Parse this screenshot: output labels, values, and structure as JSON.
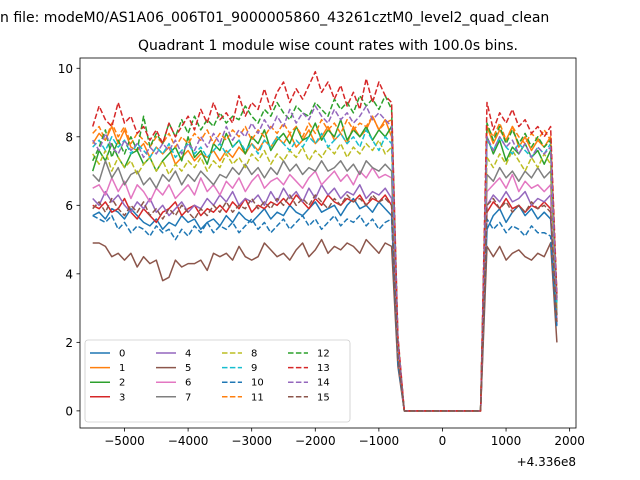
{
  "chart_data": {
    "type": "line",
    "suptitle": "n file: modeM0/AS1A06_006T01_9000005860_43261cztM0_level2_quad_clean",
    "title": "Quadrant 1 module wise count rates with 100.0s bins.",
    "xlabel": "",
    "ylabel": "",
    "offset_label": "+4.336e8",
    "xlim": [
      -5700,
      2100
    ],
    "ylim": [
      -0.5,
      10.3
    ],
    "xticks": [
      -5000,
      -4000,
      -3000,
      -2000,
      -1000,
      0,
      1000,
      2000
    ],
    "xtick_labels": [
      "−5000",
      "−4000",
      "−3000",
      "−2000",
      "−1000",
      "0",
      "1000",
      "2000"
    ],
    "yticks": [
      0,
      2,
      4,
      6,
      8,
      10
    ],
    "ytick_labels": [
      "0",
      "2",
      "4",
      "6",
      "8",
      "10"
    ],
    "grid": false,
    "legend_position": "lower-left",
    "legend_columns": 4,
    "x": [
      -5500,
      -5400,
      -5300,
      -5200,
      -5100,
      -5000,
      -4900,
      -4800,
      -4700,
      -4600,
      -4500,
      -4400,
      -4300,
      -4200,
      -4100,
      -4000,
      -3900,
      -3800,
      -3700,
      -3600,
      -3500,
      -3400,
      -3300,
      -3200,
      -3100,
      -3000,
      -2900,
      -2800,
      -2700,
      -2600,
      -2500,
      -2400,
      -2300,
      -2200,
      -2100,
      -2000,
      -1900,
      -1800,
      -1700,
      -1600,
      -1500,
      -1400,
      -1300,
      -1200,
      -1100,
      -1000,
      -900,
      -800,
      -700,
      -600,
      600,
      700,
      800,
      900,
      1000,
      1100,
      1200,
      1300,
      1400,
      1500,
      1600,
      1700,
      1800
    ],
    "series": [
      {
        "name": "0",
        "color": "#1f77b4",
        "dash": "solid",
        "values": [
          5.7,
          5.8,
          5.6,
          5.9,
          5.8,
          5.6,
          5.9,
          5.7,
          5.5,
          5.4,
          5.6,
          5.3,
          5.5,
          5.4,
          5.7,
          5.5,
          5.6,
          5.3,
          5.5,
          5.6,
          5.4,
          5.7,
          5.5,
          5.8,
          5.6,
          5.5,
          5.7,
          5.9,
          5.6,
          5.8,
          5.7,
          6.0,
          5.8,
          5.7,
          5.9,
          6.1,
          5.8,
          5.9,
          6.0,
          5.7,
          6.0,
          6.2,
          5.9,
          6.0,
          5.8,
          6.1,
          5.9,
          5.7,
          1.5,
          0.0,
          0.0,
          5.3,
          5.7,
          5.9,
          5.5,
          5.8,
          6.0,
          5.7,
          5.9,
          5.6,
          5.8,
          5.6,
          2.7
        ]
      },
      {
        "name": "1",
        "color": "#ff7f0e",
        "dash": "solid",
        "values": [
          7.8,
          8.1,
          7.9,
          8.3,
          7.8,
          8.2,
          7.7,
          7.6,
          7.8,
          7.4,
          7.7,
          7.5,
          7.7,
          7.2,
          7.4,
          7.6,
          7.3,
          7.5,
          7.4,
          7.6,
          7.3,
          7.6,
          7.4,
          7.7,
          7.5,
          7.8,
          7.6,
          7.9,
          7.7,
          8.0,
          7.8,
          8.1,
          7.7,
          7.9,
          8.2,
          7.8,
          8.0,
          8.3,
          7.9,
          8.1,
          7.8,
          8.3,
          8.0,
          8.2,
          8.6,
          8.2,
          8.5,
          8.0,
          1.8,
          0.0,
          0.0,
          8.3,
          7.8,
          8.2,
          7.9,
          8.3,
          7.7,
          8.0,
          7.6,
          7.9,
          7.7,
          8.0,
          3.2
        ]
      },
      {
        "name": "2",
        "color": "#2ca02c",
        "dash": "solid",
        "values": [
          7.0,
          7.6,
          7.3,
          7.8,
          7.4,
          7.1,
          7.5,
          7.6,
          7.2,
          7.4,
          7.0,
          7.3,
          7.5,
          7.7,
          7.3,
          8.0,
          7.4,
          7.6,
          7.2,
          7.8,
          7.6,
          8.1,
          7.7,
          7.9,
          7.5,
          8.0,
          7.8,
          8.2,
          7.6,
          7.9,
          8.1,
          7.8,
          8.3,
          7.9,
          8.0,
          8.4,
          7.9,
          8.2,
          8.0,
          8.5,
          7.9,
          8.2,
          8.0,
          8.3,
          7.9,
          8.2,
          8.0,
          8.3,
          1.8,
          0.0,
          0.0,
          8.0,
          7.5,
          7.9,
          7.3,
          7.7,
          7.5,
          7.8,
          7.4,
          7.6,
          7.2,
          7.6,
          2.8
        ]
      },
      {
        "name": "3",
        "color": "#d62728",
        "dash": "solid",
        "values": [
          6.0,
          5.9,
          6.1,
          5.8,
          5.9,
          6.2,
          5.8,
          5.6,
          5.9,
          5.7,
          5.5,
          5.8,
          5.9,
          6.1,
          5.7,
          5.9,
          6.0,
          5.7,
          5.9,
          5.8,
          6.0,
          5.8,
          6.1,
          5.9,
          6.2,
          5.8,
          6.0,
          5.9,
          6.1,
          6.0,
          6.2,
          6.0,
          6.3,
          6.1,
          5.9,
          6.2,
          6.0,
          6.3,
          6.1,
          6.0,
          6.2,
          6.1,
          6.3,
          6.0,
          6.2,
          6.1,
          6.3,
          6.0,
          1.6,
          0.0,
          0.0,
          5.8,
          6.1,
          5.9,
          6.2,
          5.9,
          6.0,
          5.8,
          6.0,
          5.9,
          6.1,
          5.9,
          2.6
        ]
      },
      {
        "name": "4",
        "color": "#9467bd",
        "dash": "solid",
        "values": [
          6.2,
          6.0,
          6.4,
          6.1,
          6.3,
          6.0,
          5.8,
          6.1,
          5.9,
          6.2,
          5.8,
          6.0,
          5.7,
          5.9,
          6.1,
          5.8,
          6.0,
          5.9,
          6.2,
          6.0,
          6.3,
          6.1,
          6.4,
          6.0,
          6.2,
          6.1,
          6.3,
          6.0,
          6.4,
          6.1,
          6.5,
          6.2,
          6.4,
          6.1,
          6.5,
          6.2,
          6.6,
          6.3,
          6.5,
          6.2,
          6.4,
          6.3,
          6.6,
          6.2,
          6.4,
          6.3,
          6.5,
          6.2,
          1.6,
          0.0,
          0.0,
          6.0,
          6.3,
          6.1,
          6.4,
          6.1,
          6.2,
          6.4,
          6.0,
          6.2,
          6.1,
          6.3,
          2.5
        ]
      },
      {
        "name": "5",
        "color": "#8c564b",
        "dash": "solid",
        "values": [
          4.9,
          4.9,
          4.8,
          4.5,
          4.6,
          4.4,
          4.6,
          4.2,
          4.5,
          4.3,
          4.4,
          3.8,
          3.9,
          4.4,
          4.2,
          4.3,
          4.3,
          4.4,
          4.1,
          4.6,
          4.5,
          4.6,
          4.4,
          4.8,
          4.5,
          4.4,
          4.5,
          4.9,
          4.7,
          4.5,
          4.6,
          4.4,
          4.7,
          4.9,
          4.5,
          4.7,
          5.0,
          4.6,
          4.8,
          4.7,
          4.9,
          4.8,
          4.6,
          5.0,
          4.8,
          4.6,
          4.9,
          4.8,
          1.3,
          0.0,
          0.0,
          4.8,
          4.5,
          4.8,
          4.4,
          4.6,
          4.7,
          4.5,
          4.4,
          4.6,
          4.5,
          4.9,
          2.0
        ]
      },
      {
        "name": "6",
        "color": "#e377c2",
        "dash": "solid",
        "values": [
          6.5,
          6.6,
          6.3,
          6.8,
          6.4,
          6.7,
          6.2,
          6.6,
          6.4,
          6.1,
          6.5,
          6.3,
          6.6,
          6.2,
          6.4,
          6.6,
          6.3,
          6.8,
          6.4,
          6.6,
          6.3,
          6.7,
          6.5,
          6.8,
          6.4,
          6.7,
          6.9,
          6.5,
          6.7,
          6.8,
          6.6,
          6.9,
          6.7,
          6.5,
          6.8,
          7.0,
          6.6,
          6.8,
          7.0,
          6.7,
          6.9,
          6.6,
          7.0,
          6.8,
          7.1,
          6.8,
          6.9,
          6.8,
          1.7,
          0.0,
          0.0,
          6.4,
          6.6,
          6.8,
          6.5,
          6.9,
          6.4,
          6.7,
          6.5,
          6.6,
          6.4,
          6.6,
          2.7
        ]
      },
      {
        "name": "7",
        "color": "#7f7f7f",
        "dash": "solid",
        "values": [
          6.9,
          6.7,
          7.3,
          6.8,
          7.1,
          6.6,
          6.9,
          7.0,
          6.6,
          6.8,
          6.5,
          6.9,
          6.7,
          7.0,
          6.6,
          6.9,
          6.7,
          7.0,
          6.8,
          6.6,
          6.9,
          6.8,
          7.1,
          6.9,
          7.2,
          6.9,
          7.1,
          6.8,
          7.1,
          6.9,
          7.3,
          7.0,
          7.2,
          6.9,
          7.1,
          7.0,
          7.3,
          7.0,
          7.1,
          7.3,
          7.0,
          7.2,
          6.9,
          7.3,
          7.1,
          7.0,
          7.2,
          7.0,
          1.8,
          0.0,
          0.0,
          6.9,
          6.7,
          7.1,
          6.8,
          7.0,
          6.7,
          7.0,
          6.8,
          7.1,
          6.8,
          7.0,
          2.8
        ]
      },
      {
        "name": "8",
        "color": "#bcbd22",
        "dash": "dashed",
        "values": [
          7.5,
          7.2,
          7.6,
          7.0,
          7.4,
          7.1,
          7.3,
          6.9,
          7.2,
          7.4,
          7.0,
          7.3,
          6.9,
          7.2,
          7.0,
          7.3,
          7.1,
          7.4,
          7.0,
          7.3,
          7.1,
          7.5,
          7.2,
          7.4,
          7.1,
          7.5,
          7.3,
          7.6,
          7.2,
          7.5,
          7.3,
          7.6,
          7.4,
          7.7,
          7.3,
          7.6,
          7.4,
          7.7,
          7.5,
          7.8,
          7.4,
          7.7,
          7.5,
          7.8,
          7.6,
          7.9,
          7.5,
          7.7,
          1.8,
          0.0,
          0.0,
          7.4,
          7.1,
          7.5,
          7.2,
          7.6,
          7.3,
          7.0,
          7.4,
          7.1,
          7.5,
          7.2,
          3.0
        ]
      },
      {
        "name": "9",
        "color": "#17becf",
        "dash": "dashed",
        "values": [
          7.7,
          7.9,
          7.6,
          8.0,
          7.7,
          7.9,
          7.5,
          7.8,
          7.6,
          7.4,
          7.7,
          7.5,
          7.8,
          7.4,
          7.6,
          7.8,
          7.5,
          7.7,
          7.4,
          7.6,
          7.8,
          7.5,
          7.7,
          7.9,
          7.6,
          7.8,
          7.5,
          7.9,
          7.7,
          8.0,
          7.8,
          7.6,
          7.9,
          7.7,
          8.0,
          7.8,
          8.1,
          7.7,
          7.9,
          8.1,
          7.8,
          8.0,
          7.7,
          8.2,
          7.9,
          7.6,
          8.0,
          7.8,
          1.9,
          0.0,
          0.0,
          7.9,
          7.6,
          8.0,
          7.7,
          7.5,
          7.8,
          7.6,
          7.4,
          7.7,
          7.5,
          7.8,
          3.1
        ]
      },
      {
        "name": "10",
        "color": "#1f77b4",
        "dash": "dashed",
        "values": [
          5.7,
          5.6,
          5.5,
          5.7,
          5.3,
          5.5,
          5.2,
          5.4,
          5.3,
          5.1,
          5.4,
          5.2,
          5.3,
          5.0,
          5.3,
          5.1,
          5.4,
          5.2,
          5.5,
          5.2,
          5.4,
          5.3,
          5.5,
          5.2,
          5.4,
          5.6,
          5.3,
          5.5,
          5.2,
          5.4,
          5.6,
          5.3,
          5.5,
          5.7,
          5.4,
          5.6,
          5.3,
          5.5,
          5.7,
          5.4,
          5.6,
          5.5,
          5.7,
          5.4,
          5.6,
          5.3,
          5.5,
          5.6,
          1.4,
          0.0,
          0.0,
          5.6,
          5.3,
          5.5,
          5.2,
          5.4,
          5.3,
          5.1,
          5.4,
          5.2,
          5.2,
          5.1,
          2.4
        ]
      },
      {
        "name": "11",
        "color": "#ff7f0e",
        "dash": "dashed",
        "values": [
          8.1,
          8.3,
          7.9,
          8.4,
          8.0,
          8.3,
          7.8,
          8.1,
          7.9,
          7.7,
          8.0,
          7.8,
          8.1,
          7.7,
          8.0,
          7.8,
          8.1,
          7.9,
          8.2,
          7.8,
          8.1,
          7.9,
          8.2,
          8.0,
          8.3,
          7.9,
          8.2,
          8.0,
          8.3,
          8.1,
          8.4,
          8.1,
          8.3,
          8.0,
          8.4,
          8.1,
          8.5,
          8.2,
          8.4,
          8.1,
          8.5,
          8.2,
          8.4,
          8.3,
          8.6,
          8.2,
          8.4,
          8.5,
          2.0,
          0.0,
          0.0,
          8.3,
          8.0,
          8.4,
          7.9,
          8.3,
          8.0,
          7.8,
          8.1,
          7.9,
          8.2,
          7.9,
          3.3
        ]
      },
      {
        "name": "12",
        "color": "#2ca02c",
        "dash": "dashed",
        "values": [
          7.3,
          7.7,
          8.2,
          7.4,
          7.9,
          7.5,
          8.0,
          7.6,
          8.6,
          7.7,
          8.1,
          7.8,
          8.4,
          8.0,
          8.5,
          8.1,
          8.6,
          8.2,
          8.5,
          8.3,
          8.7,
          8.4,
          8.6,
          8.5,
          8.9,
          8.6,
          8.4,
          8.8,
          8.6,
          9.0,
          8.7,
          8.5,
          8.9,
          8.7,
          8.6,
          9.0,
          8.8,
          8.6,
          9.1,
          8.8,
          9.0,
          8.7,
          9.2,
          8.9,
          9.1,
          8.8,
          9.2,
          8.8,
          2.1,
          0.0,
          0.0,
          8.4,
          7.9,
          8.3,
          7.8,
          8.2,
          7.8,
          8.1,
          7.7,
          8.0,
          7.7,
          7.9,
          3.3
        ]
      },
      {
        "name": "13",
        "color": "#d62728",
        "dash": "dashed",
        "values": [
          8.3,
          8.9,
          8.5,
          8.3,
          9.0,
          8.4,
          8.6,
          8.1,
          8.3,
          7.9,
          8.2,
          7.8,
          8.4,
          8.0,
          8.3,
          8.6,
          8.2,
          8.8,
          8.4,
          9.0,
          8.5,
          8.7,
          8.4,
          9.2,
          8.6,
          9.0,
          8.8,
          9.4,
          8.8,
          9.3,
          9.6,
          9.0,
          9.4,
          9.1,
          9.5,
          9.9,
          9.3,
          9.6,
          9.1,
          9.5,
          8.9,
          9.3,
          8.8,
          9.7,
          9.0,
          9.6,
          9.2,
          9.0,
          2.2,
          0.0,
          0.0,
          9.0,
          8.2,
          8.7,
          8.4,
          8.8,
          8.3,
          8.5,
          8.1,
          8.3,
          8.0,
          8.3,
          3.4
        ]
      },
      {
        "name": "14",
        "color": "#9467bd",
        "dash": "dashed",
        "values": [
          7.9,
          7.6,
          8.1,
          7.7,
          7.5,
          7.9,
          7.6,
          7.8,
          7.4,
          7.7,
          7.5,
          7.8,
          7.6,
          7.9,
          7.5,
          7.8,
          7.6,
          8.0,
          7.7,
          8.1,
          7.8,
          8.3,
          7.9,
          8.2,
          8.0,
          8.4,
          8.1,
          8.5,
          8.2,
          8.6,
          8.3,
          8.8,
          8.4,
          8.7,
          8.5,
          8.9,
          8.6,
          8.4,
          8.8,
          8.5,
          8.7,
          8.4,
          8.6,
          8.9,
          8.5,
          8.7,
          8.5,
          8.3,
          2.0,
          0.0,
          0.0,
          8.0,
          7.6,
          8.0,
          7.7,
          7.9,
          7.5,
          7.8,
          7.4,
          7.7,
          7.5,
          7.7,
          3.2
        ]
      },
      {
        "name": "15",
        "color": "#8c564b",
        "dash": "dashed",
        "values": [
          5.9,
          6.1,
          5.8,
          6.2,
          5.9,
          5.7,
          6.0,
          5.8,
          6.1,
          5.7,
          5.9,
          5.6,
          5.9,
          5.7,
          6.0,
          5.8,
          5.6,
          5.9,
          5.7,
          6.0,
          5.8,
          6.1,
          5.8,
          6.0,
          5.9,
          6.2,
          5.9,
          6.1,
          5.9,
          6.2,
          6.0,
          6.3,
          6.0,
          6.2,
          6.0,
          6.3,
          6.1,
          5.9,
          6.2,
          6.0,
          6.3,
          6.1,
          6.2,
          6.0,
          6.3,
          6.1,
          6.2,
          6.0,
          1.6,
          0.0,
          0.0,
          6.0,
          6.2,
          5.9,
          6.1,
          5.8,
          6.0,
          5.8,
          6.1,
          5.9,
          6.0,
          5.8,
          2.6
        ]
      }
    ]
  }
}
